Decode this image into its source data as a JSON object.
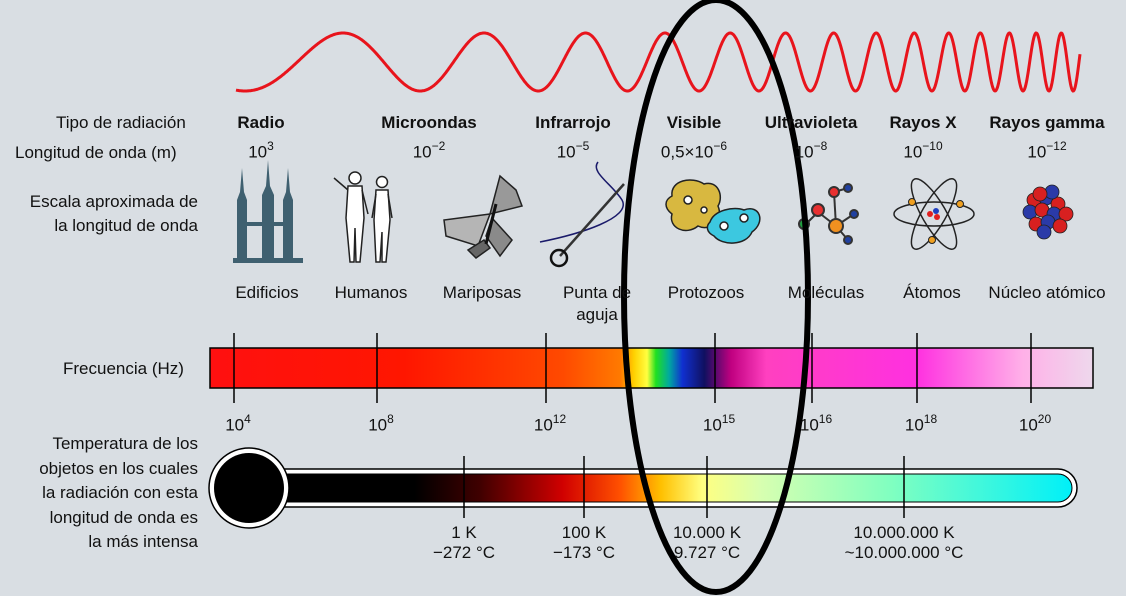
{
  "row_labels": {
    "type": "Tipo de radiación",
    "wavelength": "Longitud de onda (m)",
    "scale_line1": "Escala aproximada de",
    "scale_line2": "la longitud de onda",
    "frequency": "Frecuencia (Hz)",
    "temperature_lines": [
      "Temperatura de los",
      "objetos en los cuales",
      "la radiación con esta",
      "longitud de onda es",
      "la más intensa"
    ]
  },
  "radiation_types": [
    {
      "name": "Radio",
      "base": "10",
      "exp": "3"
    },
    {
      "name": "Microondas",
      "base": "10",
      "exp": "−2"
    },
    {
      "name": "Infrarrojo",
      "base": "10",
      "exp": "−5"
    },
    {
      "name": "Visible",
      "base": "0,5×10",
      "exp": "−6"
    },
    {
      "name": "Ultravioleta",
      "base": "10",
      "exp": "−8"
    },
    {
      "name": "Rayos X",
      "base": "10",
      "exp": "−10"
    },
    {
      "name": "Rayos gamma",
      "base": "10",
      "exp": "−12"
    }
  ],
  "scale_examples": [
    {
      "label": "Edificios",
      "icon": "buildings-icon"
    },
    {
      "label": "Humanos",
      "icon": "humans-icon"
    },
    {
      "label": "Mariposas",
      "icon": "butterfly-icon"
    },
    {
      "label": "Punta de\naguja",
      "icon": "needle-icon"
    },
    {
      "label": "Protozoos",
      "icon": "protozoa-icon"
    },
    {
      "label": "Moléculas",
      "icon": "molecule-icon"
    },
    {
      "label": "Átomos",
      "icon": "atom-icon"
    },
    {
      "label": "Núcleo atómico",
      "icon": "nucleus-icon"
    }
  ],
  "frequency_ticks": [
    {
      "base": "10",
      "exp": "4"
    },
    {
      "base": "10",
      "exp": "8"
    },
    {
      "base": "10",
      "exp": "12"
    },
    {
      "base": "10",
      "exp": "15"
    },
    {
      "base": "10",
      "exp": "16"
    },
    {
      "base": "10",
      "exp": "18"
    },
    {
      "base": "10",
      "exp": "20"
    }
  ],
  "temperature_ticks": [
    {
      "kelvin": "1 K",
      "celsius": "−272 °C"
    },
    {
      "kelvin": "100 K",
      "celsius": "−173 °C"
    },
    {
      "kelvin": "10.000 K",
      "celsius": "9.727 °C"
    },
    {
      "kelvin": "10.000.000 K",
      "celsius": "~10.000.000 °C"
    }
  ],
  "colors": {
    "background": "#d9dee3",
    "wave": "#e8141c",
    "highlight_ellipse": "#000000"
  }
}
